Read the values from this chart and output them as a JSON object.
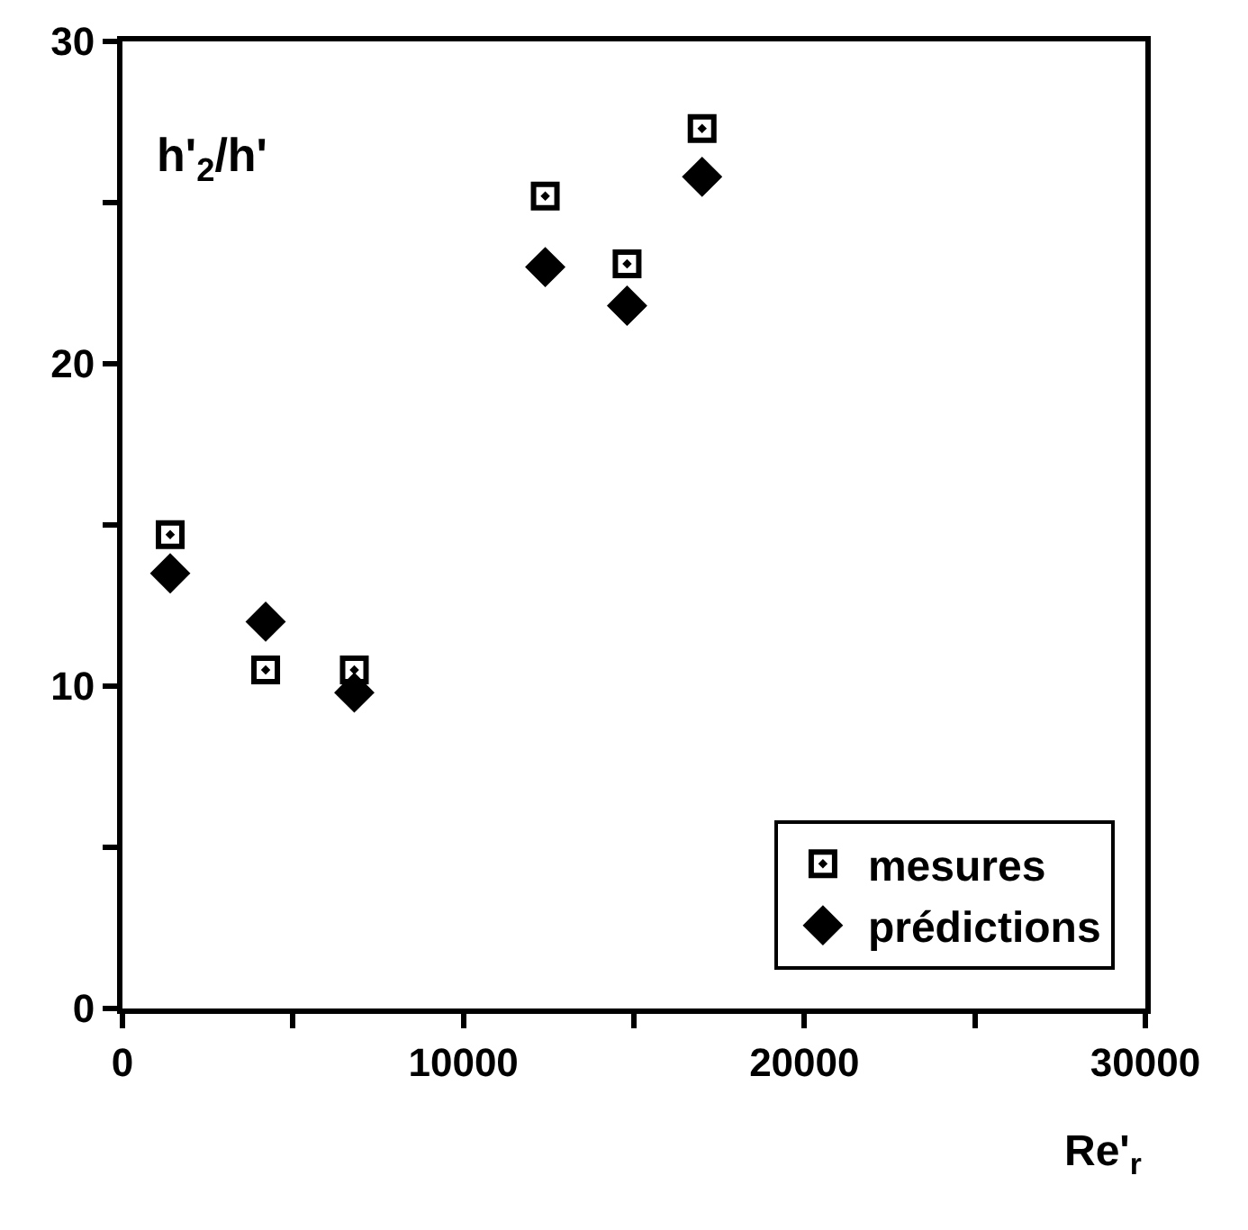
{
  "chart_data": {
    "type": "scatter",
    "xlabel": "Re'$_{r}$",
    "ylabel": "h'$_{2}$/h'",
    "x": [
      1400,
      4200,
      6800,
      12400,
      14800,
      17000
    ],
    "series": [
      {
        "name": "mesures",
        "color": "#000000",
        "marker": "square",
        "values": [
          14.7,
          10.5,
          10.5,
          25.2,
          23.1,
          27.3
        ]
      },
      {
        "name": "prédictions",
        "color": "#000000",
        "marker": "diamond",
        "values": [
          13.5,
          12.0,
          9.8,
          23.0,
          21.8,
          25.8
        ]
      }
    ],
    "xlim": [
      0,
      30000
    ],
    "ylim": [
      0,
      30
    ],
    "xticks": [
      0,
      {
        "value": 5000,
        "label": null
      },
      10000,
      {
        "value": 15000,
        "label": null
      },
      20000,
      {
        "value": 25000,
        "label": null
      },
      30000
    ],
    "yticks": [
      0,
      {
        "value": 5,
        "label": null
      },
      10,
      {
        "value": 15,
        "label": null
      },
      20,
      {
        "value": 25,
        "label": null
      },
      30
    ],
    "legend": "bottom right"
  }
}
